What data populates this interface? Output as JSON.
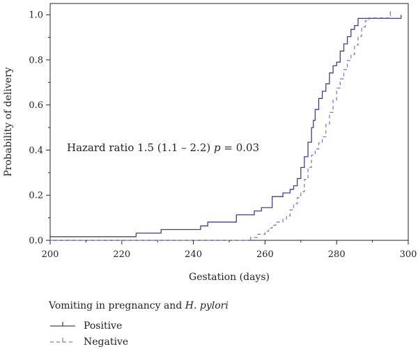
{
  "chart_data": {
    "type": "line",
    "title": "",
    "xlabel": "Gestation (days)",
    "ylabel": "Probability of delivery",
    "xlim": [
      200,
      300
    ],
    "ylim": [
      0,
      1.05
    ],
    "x_ticks": [
      200,
      220,
      240,
      260,
      280,
      300
    ],
    "y_ticks": [
      0.0,
      0.2,
      0.4,
      0.6,
      0.8,
      1.0
    ],
    "x_tick_labels": [
      "200",
      "220",
      "240",
      "260",
      "280",
      "300"
    ],
    "y_tick_labels": [
      "0.0",
      "0.2",
      "0.4",
      "0.6",
      "0.8",
      "1.0"
    ],
    "grid": false,
    "annotation": {
      "prefix": "Hazard ratio 1.5 (1.1 – 2.2) ",
      "p_symbol": "p",
      "suffix": " = 0.03"
    },
    "legend": {
      "placement": "bottom-left",
      "title_prefix": "Vomiting in pregnancy and ",
      "title_italic": "H. pylori"
    },
    "series": [
      {
        "name": "Positive",
        "style": "solid",
        "color": "#3f3f8f",
        "x": [
          200,
          224,
          231,
          242,
          244,
          252,
          257,
          259,
          262,
          265,
          267,
          268,
          269,
          270,
          271,
          272,
          273,
          273.5,
          274,
          275,
          276,
          277,
          278,
          279,
          280,
          281,
          282,
          283,
          284,
          285,
          286,
          287,
          298
        ],
        "y": [
          0.016,
          0.032,
          0.048,
          0.064,
          0.081,
          0.113,
          0.13,
          0.145,
          0.194,
          0.21,
          0.226,
          0.242,
          0.274,
          0.323,
          0.371,
          0.435,
          0.5,
          0.532,
          0.58,
          0.629,
          0.661,
          0.694,
          0.742,
          0.774,
          0.79,
          0.839,
          0.871,
          0.903,
          0.935,
          0.952,
          0.984,
          0.984,
          0.984
        ]
      },
      {
        "name": "Negative",
        "style": "dashed",
        "color": "#7b7bc7",
        "x": [
          200,
          256,
          258,
          260,
          261,
          262,
          263,
          265,
          266,
          267,
          268,
          269,
          270,
          271,
          272,
          273,
          274,
          275,
          276,
          277,
          278,
          279,
          280,
          281,
          282,
          283,
          284,
          285,
          286,
          287,
          288,
          289,
          295
        ],
        "y": [
          0,
          0.013,
          0.027,
          0.04,
          0.054,
          0.067,
          0.081,
          0.094,
          0.108,
          0.135,
          0.162,
          0.189,
          0.216,
          0.27,
          0.324,
          0.378,
          0.405,
          0.432,
          0.459,
          0.513,
          0.567,
          0.621,
          0.675,
          0.716,
          0.757,
          0.797,
          0.824,
          0.865,
          0.905,
          0.946,
          0.973,
          0.986,
          1.0
        ]
      }
    ]
  }
}
